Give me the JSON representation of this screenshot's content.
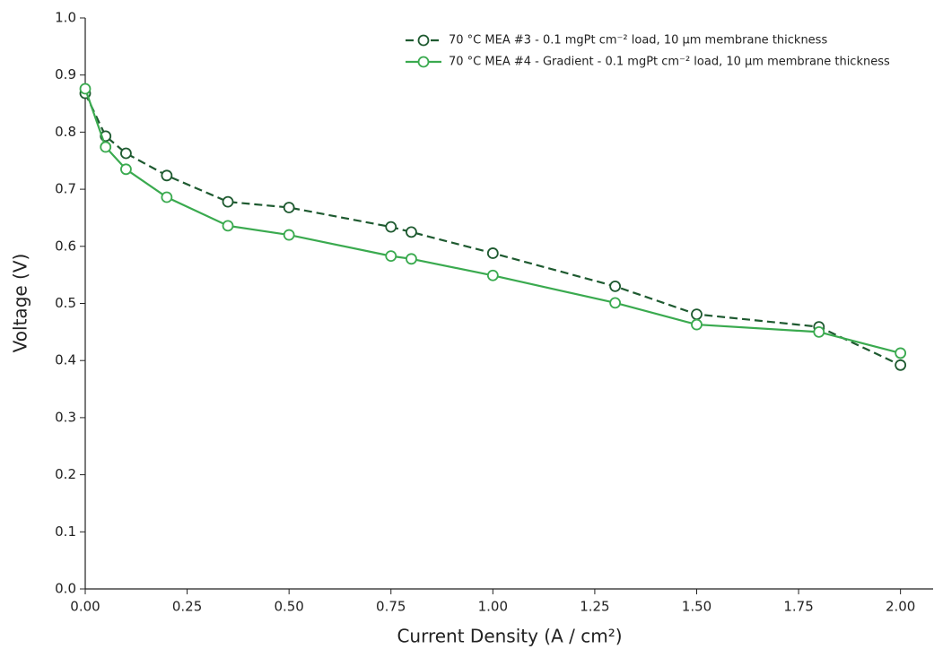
{
  "chart_data": {
    "type": "line",
    "x_label": "Current Density (A / cm²)",
    "y_label": "Voltage (V)",
    "xlim": [
      0,
      2.08
    ],
    "ylim": [
      0,
      1.0
    ],
    "xticks": [
      {
        "value": 0,
        "label": "0.00"
      },
      0.25,
      {
        "value": 0.5,
        "label": "0.50"
      },
      {
        "value": 0.75,
        "label": "0.75"
      },
      {
        "value": 1,
        "label": "1.00"
      },
      1.25,
      {
        "value": 1.5,
        "label": "1.50"
      },
      1.75,
      {
        "value": 2,
        "label": "2.00"
      }
    ],
    "yticks": [
      {
        "value": 0,
        "label": "0.0"
      },
      0.1,
      0.2,
      0.3,
      0.4,
      0.5,
      0.6,
      0.7,
      0.8,
      0.9,
      {
        "value": 1,
        "label": "1.0"
      }
    ],
    "grid": false,
    "legend_loc": "upper right",
    "x": [
      0,
      0.05,
      0.1,
      0.2,
      0.35,
      0.5,
      0.75,
      0.8,
      1.0,
      1.3,
      1.5,
      1.8,
      2.0
    ],
    "series": [
      {
        "name": "70 °C  MEA #3 - 0.1 mgPt cm⁻² load, 10 µm membrane thickness",
        "color": "#1e5a30",
        "linestyle": "dashed",
        "values": [
          0.868,
          0.793,
          0.763,
          0.724,
          0.678,
          0.668,
          0.634,
          0.625,
          0.588,
          0.53,
          0.481,
          0.459,
          0.392
        ]
      },
      {
        "name": "70 °C  MEA #4 - Gradient - 0.1 mgPt cm⁻² load, 10 µm membrane thickness",
        "color": "#3aaa4f",
        "linestyle": "solid",
        "values": [
          0.876,
          0.774,
          0.735,
          0.686,
          0.636,
          0.62,
          0.583,
          0.578,
          0.549,
          0.501,
          0.463,
          0.45,
          0.413
        ]
      }
    ]
  }
}
